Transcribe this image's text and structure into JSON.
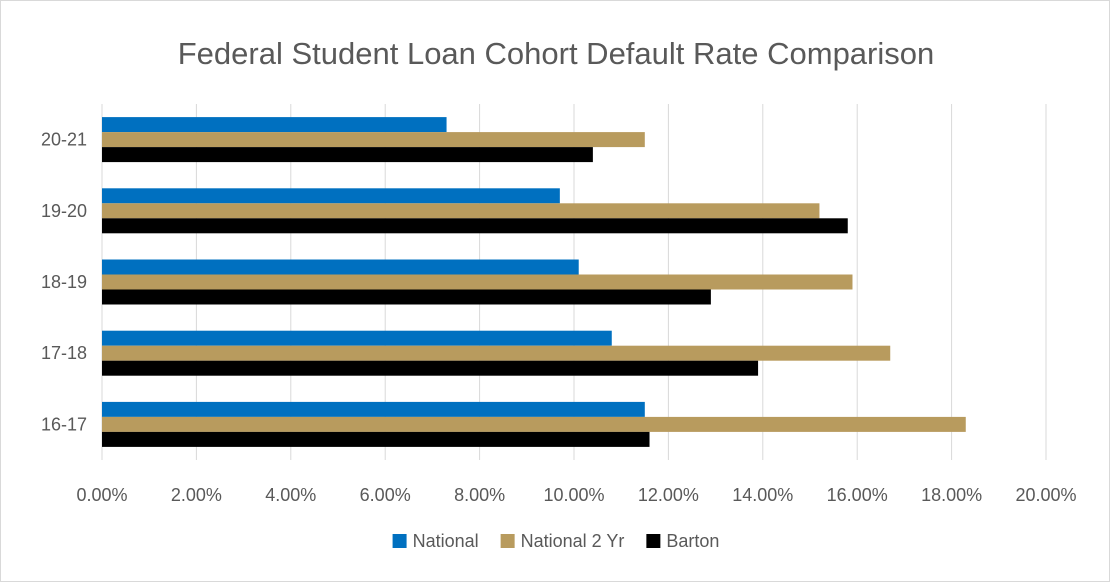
{
  "chart_data": {
    "type": "bar",
    "orientation": "horizontal",
    "title": "Federal Student Loan Cohort Default Rate Comparison",
    "categories": [
      "16-17",
      "17-18",
      "18-19",
      "19-20",
      "20-21"
    ],
    "series": [
      {
        "name": "National",
        "color": "#0070c0",
        "values": [
          11.5,
          10.8,
          10.1,
          9.7,
          7.3
        ]
      },
      {
        "name": "National 2 Yr",
        "color": "#b89b5e",
        "values": [
          18.3,
          16.7,
          15.9,
          15.2,
          11.5
        ]
      },
      {
        "name": "Barton",
        "color": "#000000",
        "values": [
          11.6,
          13.9,
          12.9,
          15.8,
          10.4
        ]
      }
    ],
    "x_ticks": [
      "0.00%",
      "2.00%",
      "4.00%",
      "6.00%",
      "8.00%",
      "10.00%",
      "12.00%",
      "14.00%",
      "16.00%",
      "18.00%",
      "20.00%"
    ],
    "xlim": [
      0,
      20
    ],
    "grid": "vertical",
    "legend_position": "bottom"
  }
}
